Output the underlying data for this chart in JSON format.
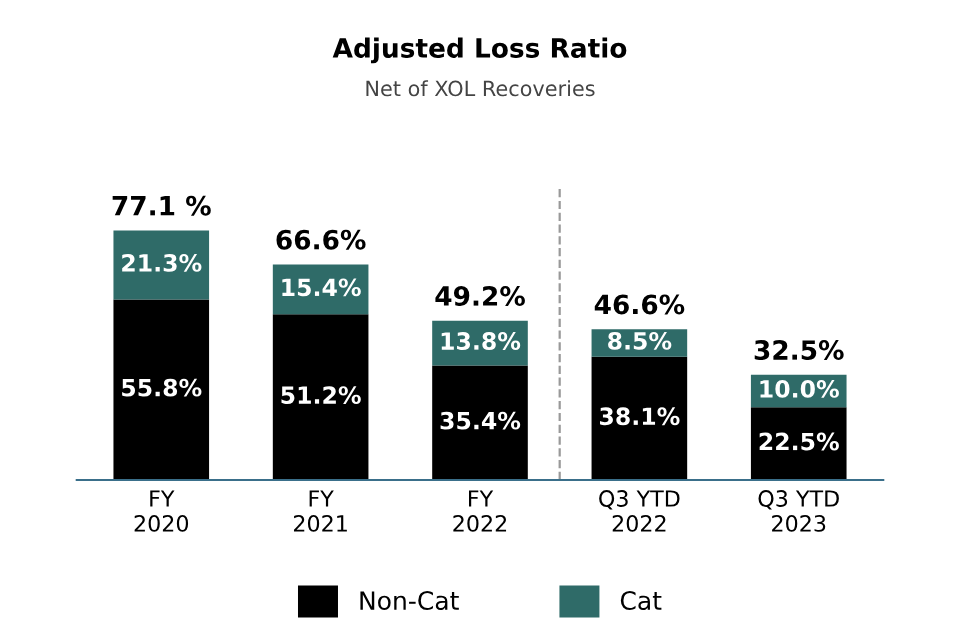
{
  "chart_data": {
    "type": "bar",
    "title": "Adjusted Loss Ratio",
    "subtitle": "Net of XOL Recoveries",
    "categories": [
      "FY\n2020",
      "FY\n2021",
      "FY\n2022",
      "Q3 YTD\n2022",
      "Q3 YTD\n2023"
    ],
    "stacked": true,
    "series": [
      {
        "name": "Non-Cat",
        "color": "#000000",
        "values": [
          55.8,
          51.2,
          35.4,
          38.1,
          22.5
        ],
        "value_labels": [
          "55.8%",
          "51.2%",
          "35.4%",
          "38.1%",
          "22.5%"
        ]
      },
      {
        "name": "Cat",
        "color": "#2f6b68",
        "values": [
          21.3,
          15.4,
          13.8,
          8.5,
          10.0
        ],
        "value_labels": [
          "21.3%",
          "15.4%",
          "13.8%",
          "8.5%",
          "10.0%"
        ]
      }
    ],
    "totals": [
      "77.1 %",
      "66.6%",
      "49.2%",
      "46.6%",
      "32.5%"
    ],
    "legend": "bottom",
    "grid": false,
    "tick_labels": "x"
  }
}
